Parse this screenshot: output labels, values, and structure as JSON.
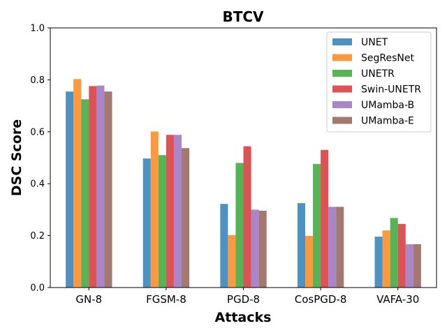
{
  "chart_data": {
    "type": "bar",
    "title": "BTCV",
    "xlabel": "Attacks",
    "ylabel": "DSC Score",
    "ylim": [
      0,
      1.0
    ],
    "yticks": [
      "0.0",
      "0.2",
      "0.4",
      "0.6",
      "0.8",
      "1.0"
    ],
    "categories": [
      "GN-8",
      "FGSM-8",
      "PGD-8",
      "CosPGD-8",
      "VAFA-30"
    ],
    "legend_position": "top-right",
    "series": [
      {
        "name": "UNET",
        "color": "#1f77b4",
        "values": [
          0.755,
          0.497,
          0.322,
          0.325,
          0.196
        ]
      },
      {
        "name": "SegResNet",
        "color": "#ff7f0e",
        "values": [
          0.803,
          0.601,
          0.202,
          0.199,
          0.22
        ]
      },
      {
        "name": "UNETR",
        "color": "#2ca02c",
        "values": [
          0.725,
          0.51,
          0.48,
          0.476,
          0.268
        ]
      },
      {
        "name": "Swin-UNETR",
        "color": "#d62728",
        "values": [
          0.776,
          0.588,
          0.544,
          0.53,
          0.245
        ]
      },
      {
        "name": "UMamba-B",
        "color": "#9467bd",
        "values": [
          0.778,
          0.588,
          0.3,
          0.311,
          0.167
        ]
      },
      {
        "name": "UMamba-E",
        "color": "#8c564b",
        "values": [
          0.755,
          0.537,
          0.296,
          0.311,
          0.167
        ]
      }
    ]
  }
}
